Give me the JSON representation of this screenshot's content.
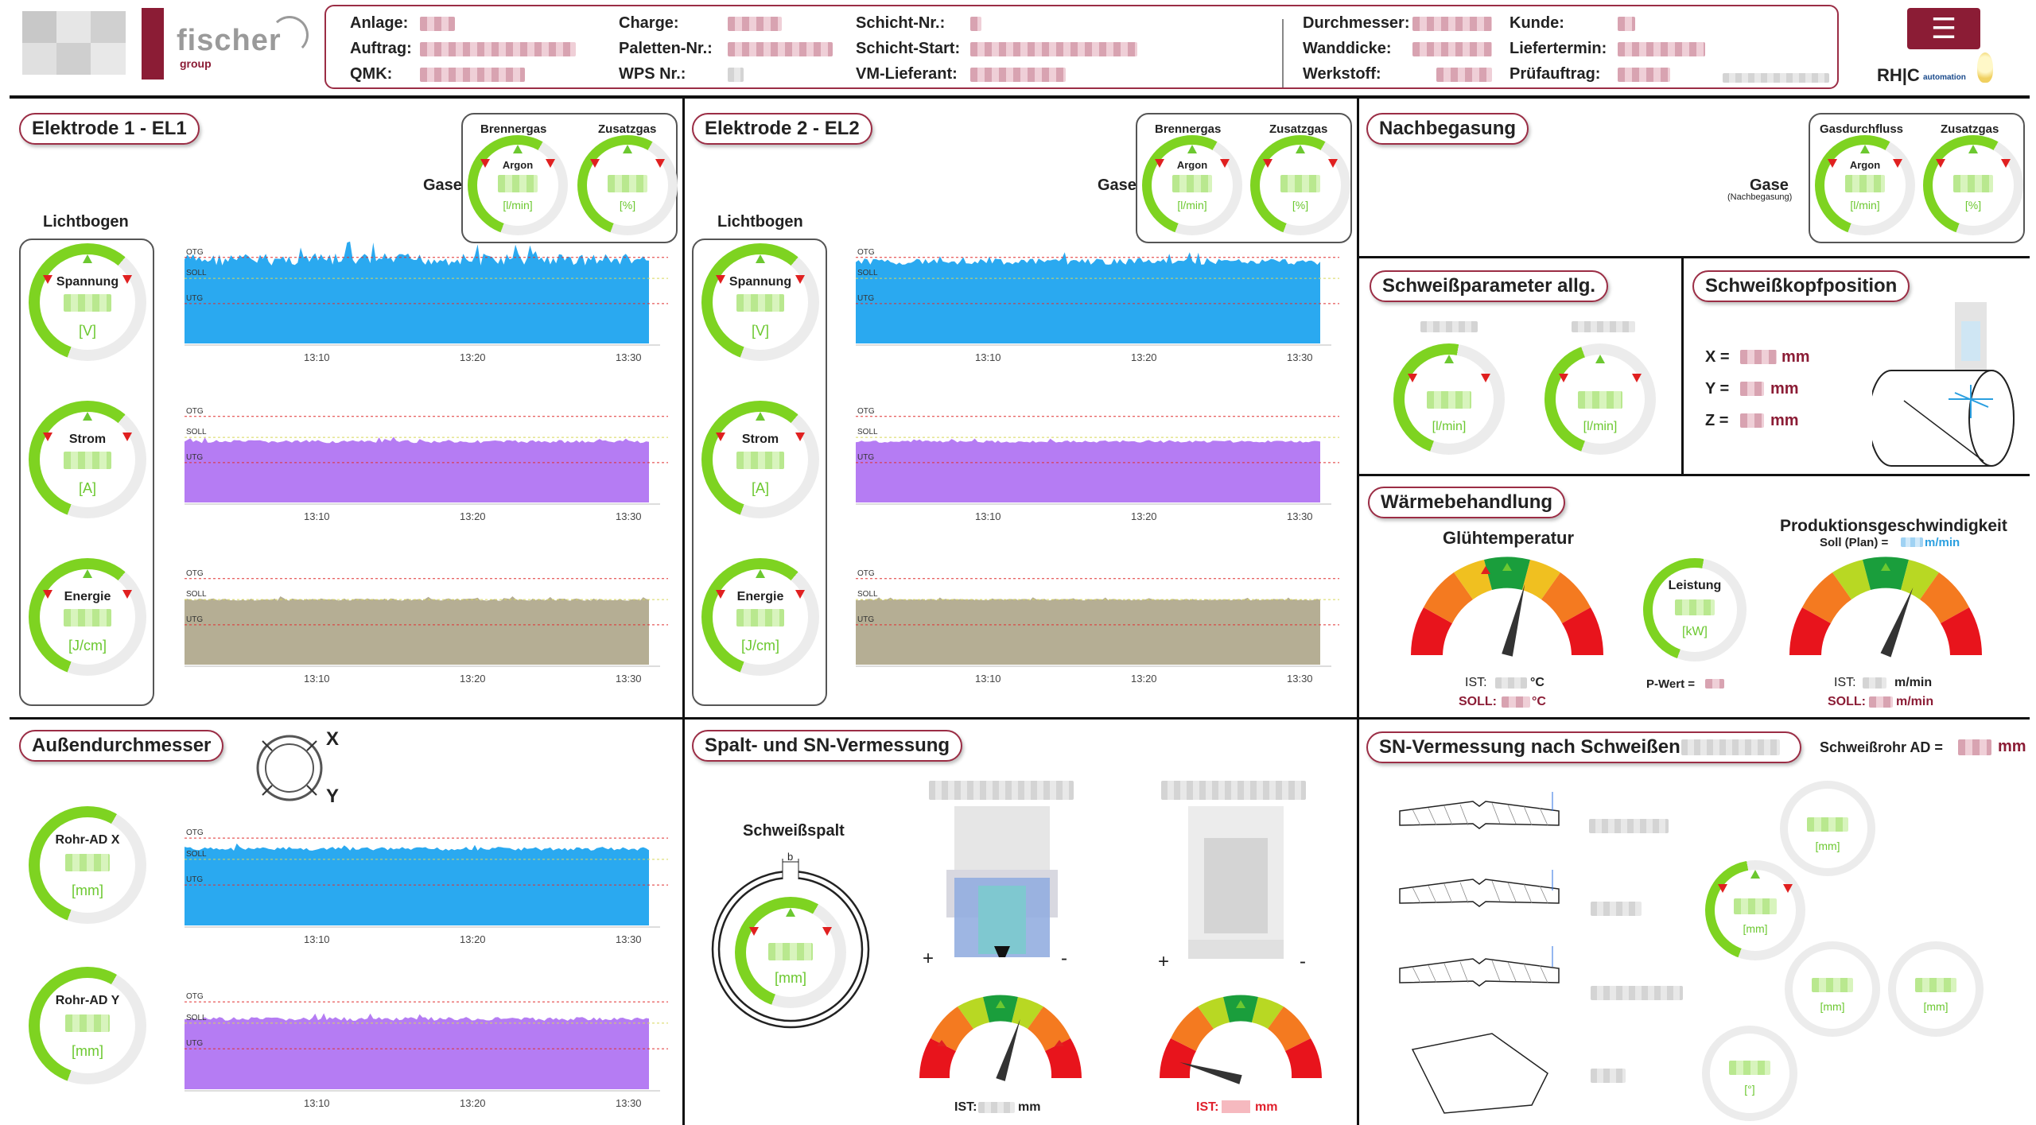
{
  "header": {
    "logo_name": "fischer",
    "logo_sub": "group",
    "menu_icon": "☰",
    "rhc_logo": "RH|C",
    "rhc_sub": "automation",
    "fields": [
      {
        "label": "Anlage:"
      },
      {
        "label": "Auftrag:"
      },
      {
        "label": "QMK:"
      },
      {
        "label": "Charge:"
      },
      {
        "label": "Paletten-Nr.:"
      },
      {
        "label": "WPS Nr.:"
      },
      {
        "label": "Schicht-Nr.:"
      },
      {
        "label": "Schicht-Start:"
      },
      {
        "label": "VM-Lieferant:"
      },
      {
        "label": "Durchmesser:"
      },
      {
        "label": "Wanddicke:"
      },
      {
        "label": "Werkstoff:"
      },
      {
        "label": "Kunde:"
      },
      {
        "label": "Liefertermin:"
      },
      {
        "label": "Prüfauftrag:"
      }
    ]
  },
  "el1": {
    "title": "Elektrode 1 - EL1",
    "gases_label": "Gase",
    "lichtbogen": "Lichtbogen",
    "gas1": {
      "title": "Brennergas",
      "name": "Argon",
      "unit": "[l/min]"
    },
    "gas2": {
      "title": "Zusatzgas",
      "unit": "[%]"
    },
    "g_spannung": {
      "title": "Spannung",
      "unit": "[V]"
    },
    "g_strom": {
      "title": "Strom",
      "unit": "[A]"
    },
    "g_energie": {
      "title": "Energie",
      "unit": "[J/cm]"
    }
  },
  "el2": {
    "title": "Elektrode 2 - EL2",
    "gases_label": "Gase",
    "lichtbogen": "Lichtbogen",
    "gas1": {
      "title": "Brennergas",
      "name": "Argon",
      "unit": "[l/min]"
    },
    "gas2": {
      "title": "Zusatzgas",
      "unit": "[%]"
    },
    "g_spannung": {
      "title": "Spannung",
      "unit": "[V]"
    },
    "g_strom": {
      "title": "Strom",
      "unit": "[A]"
    },
    "g_energie": {
      "title": "Energie",
      "unit": "[J/cm]"
    }
  },
  "chart_labels": {
    "otg": "OTG",
    "soll": "SOLL",
    "utg": "UTG",
    "times": [
      "13:10",
      "13:20",
      "13:30"
    ]
  },
  "nachbegasung": {
    "title": "Nachbegasung",
    "gases_label": "Gase",
    "gases_sub": "(Nachbegasung)",
    "gas1": {
      "title": "Gasdurchfluss",
      "name": "Argon",
      "unit": "[l/min]"
    },
    "gas2": {
      "title": "Zusatzgas",
      "unit": "[%]"
    }
  },
  "schweissparam": {
    "title": "Schweißparameter allg.",
    "unit1": "[l/min]",
    "unit2": "[l/min]"
  },
  "kopfposition": {
    "title": "Schweißkopfposition",
    "x": "X =",
    "y": "Y =",
    "z": "Z =",
    "unit": "mm"
  },
  "waerme": {
    "title": "Wärmebehandlung",
    "gluehtemp": "Glühtemperatur",
    "leistung_title": "Leistung",
    "leistung_unit": "[kW]",
    "pwert": "P-Wert =",
    "ist": "IST:",
    "soll": "SOLL:",
    "temp_unit": "°C",
    "prod_title": "Produktionsgeschwindigkeit",
    "prod_soll": "Soll (Plan) =",
    "speed_unit": "m/min"
  },
  "aussen": {
    "title": "Außendurchmesser",
    "x": "X",
    "y": "Y",
    "g_x": {
      "title": "Rohr-AD X",
      "unit": "[mm]"
    },
    "g_y": {
      "title": "Rohr-AD Y",
      "unit": "[mm]"
    }
  },
  "spalt": {
    "title": "Spalt- und SN-Vermessung",
    "schweissspalt": "Schweißspalt",
    "b": "b",
    "unit": "[mm]",
    "plus": "+",
    "minus": "-",
    "ist": "IST:",
    "mm": "mm"
  },
  "snverm": {
    "title": "SN-Vermessung nach Schweißen",
    "rohr_ad": "Schweißrohr AD =",
    "mm": "mm",
    "u1": "[mm]",
    "u2": "[mm]",
    "u3": "[mm]",
    "u4": "[mm]",
    "u5": "[°]"
  },
  "colors": {
    "brand": "#8b1c35",
    "gauge_green": "#7ed321",
    "blue_fill": "#2aa9f0",
    "purple_fill": "#b57cf3",
    "khaki_fill": "#b5ae94"
  }
}
